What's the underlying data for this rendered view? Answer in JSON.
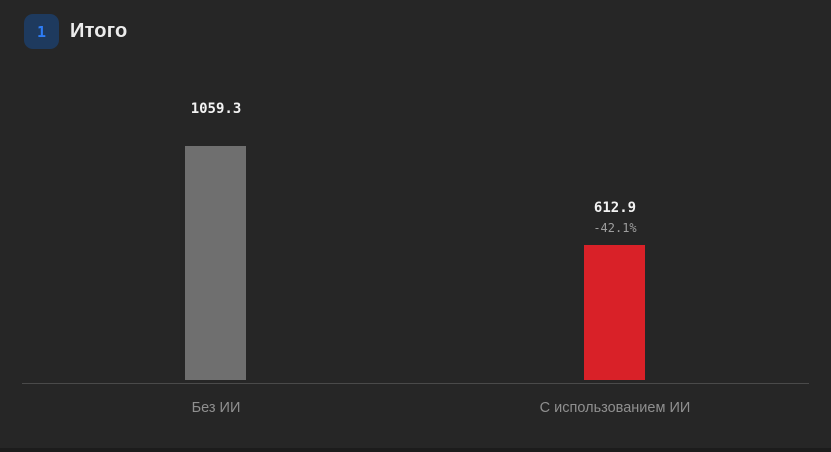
{
  "header": {
    "badge": "1",
    "title": "Итого"
  },
  "colors": {
    "background": "#262626",
    "badge_background": "#1e3a5e",
    "badge_text": "#2e7df6",
    "title_text": "#ececec",
    "axis_line": "#4a4a4a",
    "value_text": "#f2f2f2",
    "delta_text": "#9e9e9e",
    "category_text": "#8f8f8f",
    "bar_without_ai": "#6f6f6f",
    "bar_with_ai": "#d92128"
  },
  "chart_data": {
    "type": "bar",
    "title": "Итого",
    "categories": [
      "Без ИИ",
      "С использованием ИИ"
    ],
    "values": [
      1059.3,
      612.9
    ],
    "value_labels": [
      "1059.3",
      "612.9"
    ],
    "delta_labels": [
      "",
      "-42.1%"
    ],
    "bar_colors": [
      "#6f6f6f",
      "#d92128"
    ],
    "xlabel": "",
    "ylabel": "",
    "ylim": [
      0,
      1155
    ],
    "grid": false,
    "legend": "none",
    "annotations": [
      "second bar is 42.1% lower than first"
    ]
  }
}
